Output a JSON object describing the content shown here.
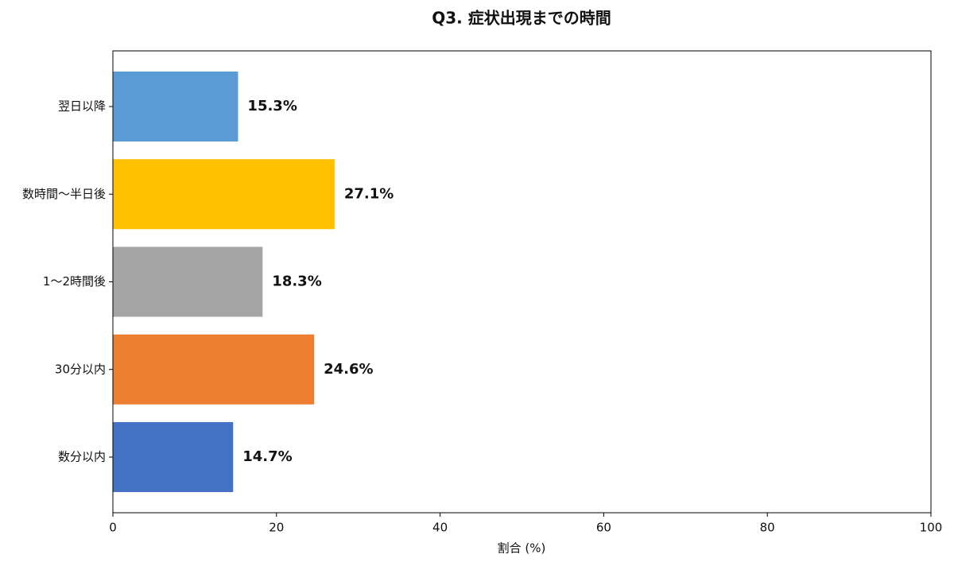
{
  "chart_data": {
    "type": "barh",
    "title": "Q3. 症状出現までの時間",
    "xlabel": "割合 (%)",
    "categories": [
      "翌日以降",
      "数時間〜半日後",
      "1〜2時間後",
      "30分以内",
      "数分以内"
    ],
    "values": [
      15.3,
      27.1,
      18.3,
      24.6,
      14.7
    ],
    "value_labels": [
      "15.3%",
      "27.1%",
      "18.3%",
      "24.6%",
      "14.7%"
    ],
    "colors": [
      "#5b9bd5",
      "#ffc000",
      "#a5a5a5",
      "#ed7d31",
      "#4472c4"
    ],
    "xlim": [
      0,
      100
    ],
    "xticks": [
      0,
      20,
      40,
      60,
      80,
      100
    ]
  }
}
